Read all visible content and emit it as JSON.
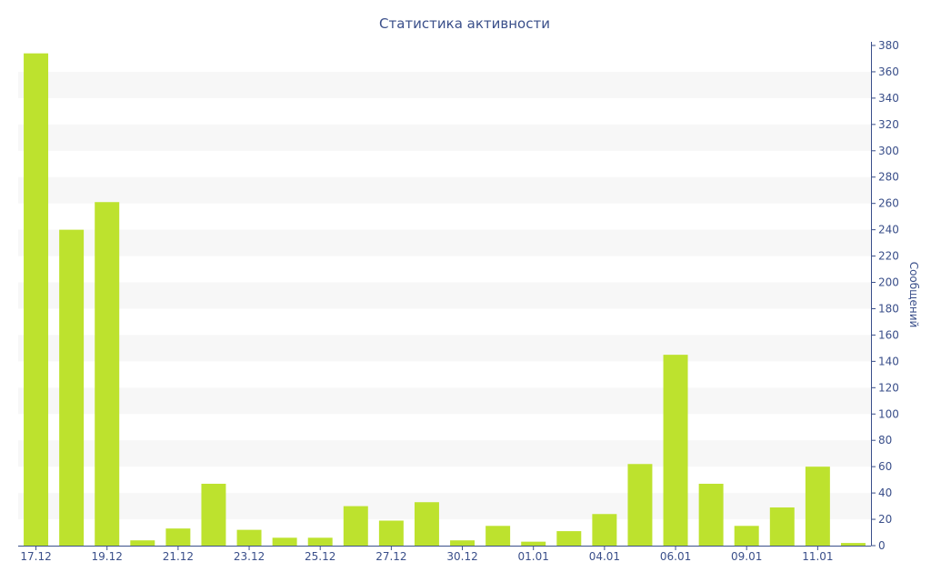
{
  "chart_data": {
    "type": "bar",
    "title": "Статистика активности",
    "xlabel": "",
    "ylabel": "Сообщений",
    "y_axis_position": "right",
    "ylim": [
      0,
      380
    ],
    "y_ticks": [
      0,
      20,
      40,
      60,
      80,
      100,
      120,
      140,
      160,
      180,
      200,
      220,
      240,
      260,
      280,
      300,
      320,
      340,
      360,
      380
    ],
    "grid": "alternating horizontal bands",
    "bar_color": "#bde22e",
    "axis_color": "#3a4f8a",
    "band_color": "#f7f7f7",
    "bars": [
      374,
      240,
      261,
      4,
      13,
      47,
      12,
      6,
      6,
      30,
      19,
      33,
      4,
      15,
      3,
      11,
      24,
      62,
      145,
      47,
      15,
      29,
      60,
      2
    ],
    "x_tick_labels": [
      {
        "bar": 0,
        "label": "17.12"
      },
      {
        "bar": 2,
        "label": "19.12"
      },
      {
        "bar": 4,
        "label": "21.12"
      },
      {
        "bar": 6,
        "label": "23.12"
      },
      {
        "bar": 8,
        "label": "25.12"
      },
      {
        "bar": 10,
        "label": "27.12"
      },
      {
        "bar": 12,
        "label": "30.12"
      },
      {
        "bar": 14,
        "label": "01.01"
      },
      {
        "bar": 16,
        "label": "04.01"
      },
      {
        "bar": 18,
        "label": "06.01"
      },
      {
        "bar": 20,
        "label": "09.01"
      },
      {
        "bar": 22,
        "label": "11.01"
      }
    ]
  }
}
